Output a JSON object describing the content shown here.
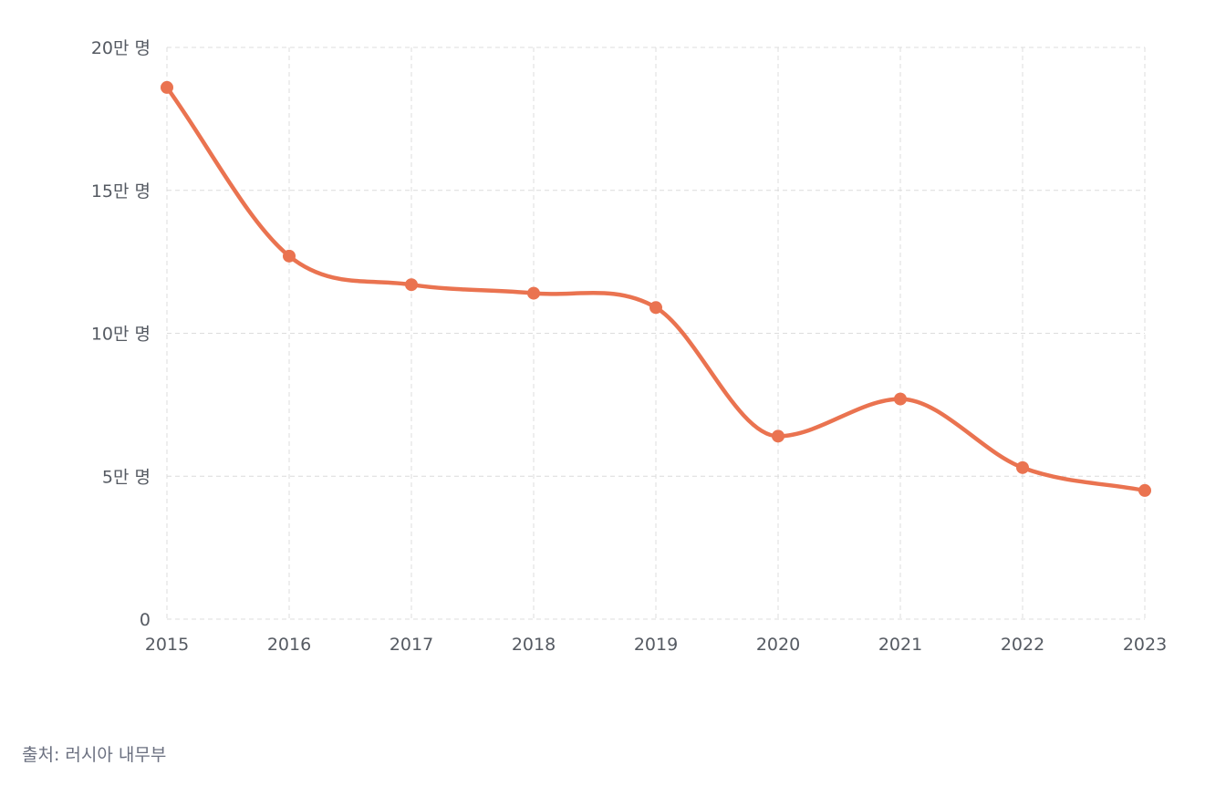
{
  "chart_data": {
    "type": "line",
    "categories": [
      "2015",
      "2016",
      "2017",
      "2018",
      "2019",
      "2020",
      "2021",
      "2022",
      "2023"
    ],
    "series": [
      {
        "values": [
          186000,
          127000,
          117000,
          114000,
          109000,
          64000,
          77000,
          53000,
          45000
        ],
        "color": "#ea7350"
      }
    ],
    "ylim": [
      0,
      200000
    ],
    "yticks": [
      0,
      50000,
      100000,
      150000,
      200000
    ],
    "ytick_labels": [
      "0",
      "5만 명",
      "10만 명",
      "15만 명",
      "20만 명"
    ],
    "grid": true,
    "grid_style": "dashed",
    "smooth": true,
    "markers": true
  },
  "source": "출처: 러시아 내무부"
}
